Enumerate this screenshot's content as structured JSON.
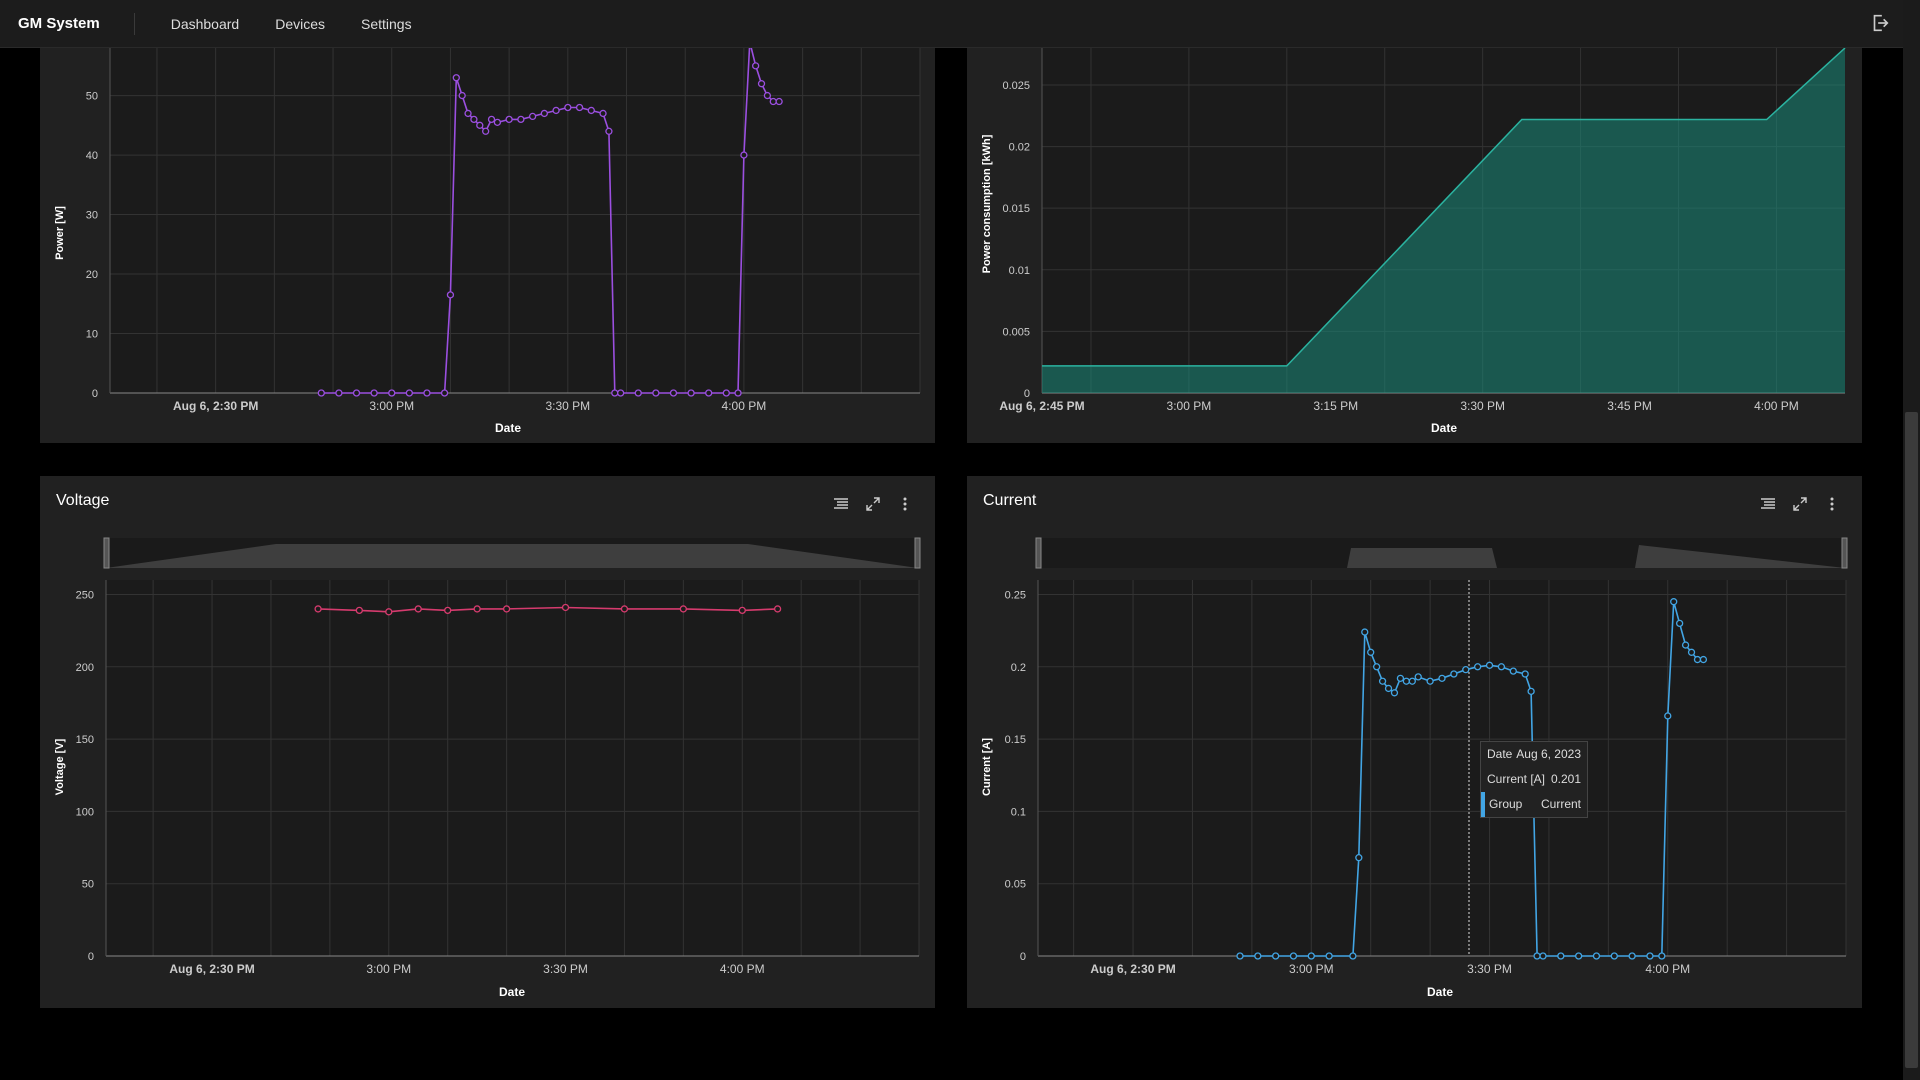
{
  "app": {
    "title": "GM System"
  },
  "nav": [
    "Dashboard",
    "Devices",
    "Settings"
  ],
  "panels": {
    "power": {
      "ylabel": "Power [W]",
      "xlabel": "Date",
      "yticks": [
        "0",
        "10",
        "20",
        "30",
        "40",
        "50"
      ],
      "xticks": [
        "Aug 6, 2:30 PM",
        "3:00 PM",
        "3:30 PM",
        "4:00 PM"
      ]
    },
    "consumption": {
      "ylabel": "Power consumption [kWh]",
      "xlabel": "Date",
      "yticks": [
        "0",
        "0.005",
        "0.01",
        "0.015",
        "0.02",
        "0.025"
      ],
      "xticks": [
        "Aug 6, 2:45 PM",
        "3:00 PM",
        "3:15 PM",
        "3:30 PM",
        "3:45 PM",
        "4:00 PM"
      ]
    },
    "voltage": {
      "title": "Voltage",
      "ylabel": "Voltage [V]",
      "xlabel": "Date",
      "yticks": [
        "0",
        "50",
        "100",
        "150",
        "200",
        "250"
      ],
      "xticks": [
        "Aug 6, 2:30 PM",
        "3:00 PM",
        "3:30 PM",
        "4:00 PM"
      ]
    },
    "current": {
      "title": "Current",
      "ylabel": "Current [A]",
      "xlabel": "Date",
      "yticks": [
        "0",
        "0.05",
        "0.1",
        "0.15",
        "0.2",
        "0.25"
      ],
      "xticks": [
        "Aug 6, 2:30 PM",
        "3:00 PM",
        "3:30 PM",
        "4:00 PM"
      ]
    }
  },
  "tooltip": {
    "date_label": "Date",
    "date_value": "Aug 6, 2023",
    "current_label": "Current [A]",
    "current_value": "0.201",
    "group_label": "Group",
    "group_value": "Current"
  },
  "chart_data": [
    {
      "type": "line",
      "name": "power",
      "color": "#9b4fe0",
      "ylim": [
        0,
        58
      ],
      "xlim": [
        "14:18",
        "14:18"
      ],
      "xticks_at": [
        "14:30",
        "15:00",
        "15:30",
        "16:00"
      ],
      "x": [
        "14:48",
        "14:51",
        "14:54",
        "14:57",
        "15:00",
        "15:03",
        "15:06",
        "15:09",
        "15:10",
        "15:11",
        "15:12",
        "15:13",
        "15:14",
        "15:15",
        "15:16",
        "15:17",
        "15:18",
        "15:20",
        "15:22",
        "15:24",
        "15:26",
        "15:28",
        "15:30",
        "15:32",
        "15:34",
        "15:36",
        "15:37",
        "15:38",
        "15:39",
        "15:42",
        "15:45",
        "15:48",
        "15:51",
        "15:54",
        "15:57",
        "15:59",
        "16:00",
        "16:01",
        "16:02",
        "16:03",
        "16:04",
        "16:05",
        "16:06"
      ],
      "y": [
        0,
        0,
        0,
        0,
        0,
        0,
        0,
        0,
        16.5,
        53,
        50,
        47,
        46,
        45,
        44,
        46,
        45.5,
        46,
        46,
        46.5,
        47,
        47.5,
        48,
        48,
        47.5,
        47,
        44,
        0,
        0,
        0,
        0,
        0,
        0,
        0,
        0,
        0,
        40,
        59,
        55,
        52,
        50,
        49,
        49
      ]
    },
    {
      "type": "area",
      "name": "consumption",
      "color": "#1a8a7a",
      "ylim": [
        0,
        0.028
      ],
      "xticks_at": [
        "14:45",
        "15:00",
        "15:15",
        "15:30",
        "15:45",
        "16:00"
      ],
      "x": [
        "14:45",
        "15:10",
        "15:34",
        "15:59",
        "16:07"
      ],
      "y": [
        0.0022,
        0.0022,
        0.0222,
        0.0222,
        0.028
      ]
    },
    {
      "type": "line",
      "name": "voltage",
      "color": "#d63b6e",
      "ylim": [
        0,
        260
      ],
      "xticks_at": [
        "14:30",
        "15:00",
        "15:30",
        "16:00"
      ],
      "x": [
        "14:48",
        "14:55",
        "15:00",
        "15:05",
        "15:10",
        "15:15",
        "15:20",
        "15:30",
        "15:40",
        "15:50",
        "16:00",
        "16:06"
      ],
      "y": [
        240,
        239,
        238,
        240,
        239,
        240,
        240,
        241,
        240,
        240,
        239,
        240
      ]
    },
    {
      "type": "line",
      "name": "current",
      "color": "#42a5e4",
      "ylim": [
        0,
        0.26
      ],
      "xticks_at": [
        "14:30",
        "15:00",
        "15:30",
        "16:00"
      ],
      "x": [
        "14:48",
        "14:51",
        "14:54",
        "14:57",
        "15:00",
        "15:03",
        "15:07",
        "15:08",
        "15:09",
        "15:10",
        "15:11",
        "15:12",
        "15:13",
        "15:14",
        "15:15",
        "15:16",
        "15:17",
        "15:18",
        "15:20",
        "15:22",
        "15:24",
        "15:26",
        "15:28",
        "15:30",
        "15:32",
        "15:34",
        "15:36",
        "15:37",
        "15:38",
        "15:39",
        "15:42",
        "15:45",
        "15:48",
        "15:51",
        "15:54",
        "15:57",
        "15:59",
        "16:00",
        "16:01",
        "16:02",
        "16:03",
        "16:04",
        "16:05",
        "16:06"
      ],
      "y": [
        0,
        0,
        0,
        0,
        0,
        0,
        0,
        0.068,
        0.224,
        0.21,
        0.2,
        0.19,
        0.185,
        0.182,
        0.192,
        0.19,
        0.19,
        0.193,
        0.19,
        0.192,
        0.195,
        0.198,
        0.2,
        0.201,
        0.2,
        0.197,
        0.195,
        0.183,
        0,
        0,
        0,
        0,
        0,
        0,
        0,
        0,
        0,
        0.166,
        0.245,
        0.23,
        0.215,
        0.21,
        0.205,
        0.205
      ]
    }
  ]
}
